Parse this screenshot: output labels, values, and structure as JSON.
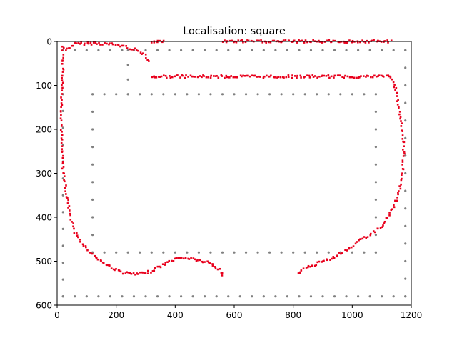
{
  "chart_data": {
    "type": "scatter",
    "title": "Localisation: square",
    "xlabel": "",
    "ylabel": "",
    "xlim": [
      0,
      1200
    ],
    "ylim": [
      600,
      0
    ],
    "y_inverted": true,
    "grid": false,
    "x_ticks": [
      0,
      200,
      400,
      600,
      800,
      1000,
      1200
    ],
    "y_ticks": [
      0,
      100,
      200,
      300,
      400,
      500,
      600
    ],
    "x_tick_labels": [
      "0",
      "200",
      "400",
      "600",
      "800",
      "1000",
      "1200"
    ],
    "y_tick_labels": [
      "0",
      "100",
      "200",
      "300",
      "400",
      "500",
      "600"
    ],
    "colors": {
      "landmarks": "#808080",
      "path": "#e8001c"
    },
    "series": [
      {
        "role": "landmarks",
        "marker": "circle",
        "polylines": [
          [
            [
              20,
              20
            ],
            [
              1180,
              20
            ]
          ],
          [
            [
              240,
              20
            ],
            [
              240,
              120
            ]
          ],
          [
            [
              20,
              120
            ],
            [
              20,
              580
            ]
          ],
          [
            [
              20,
              580
            ],
            [
              1180,
              580
            ]
          ],
          [
            [
              1180,
              20
            ],
            [
              1180,
              580
            ]
          ],
          [
            [
              120,
              120
            ],
            [
              1080,
              120
            ]
          ],
          [
            [
              120,
              120
            ],
            [
              120,
              480
            ]
          ],
          [
            [
              120,
              480
            ],
            [
              1080,
              480
            ]
          ],
          [
            [
              1080,
              120
            ],
            [
              1080,
              480
            ]
          ]
        ],
        "spacing": 40
      },
      {
        "role": "path",
        "marker": "square",
        "polylines": [
          [
            [
              30,
              20
            ],
            [
              60,
              6
            ],
            [
              130,
              4
            ],
            [
              180,
              6
            ],
            [
              220,
              10
            ],
            [
              270,
              20
            ],
            [
              300,
              30
            ],
            [
              310,
              45
            ]
          ],
          [
            [
              20,
              10
            ],
            [
              20,
              60
            ],
            [
              15,
              150
            ],
            [
              15,
              230
            ],
            [
              20,
              290
            ],
            [
              30,
              340
            ],
            [
              40,
              380
            ],
            [
              50,
              410
            ],
            [
              60,
              435
            ],
            [
              80,
              455
            ],
            [
              100,
              470
            ],
            [
              120,
              485
            ],
            [
              140,
              495
            ],
            [
              160,
              505
            ],
            [
              180,
              512
            ],
            [
              200,
              520
            ],
            [
              230,
              527
            ],
            [
              270,
              530
            ],
            [
              310,
              525
            ],
            [
              340,
              515
            ],
            [
              370,
              505
            ],
            [
              400,
              495
            ],
            [
              430,
              492
            ],
            [
              460,
              495
            ],
            [
              490,
              500
            ],
            [
              520,
              505
            ],
            [
              550,
              520
            ],
            [
              560,
              533
            ]
          ],
          [
            [
              320,
              80
            ],
            [
              1080,
              80
            ],
            [
              1120,
              78
            ],
            [
              1140,
              90
            ],
            [
              1150,
              120
            ],
            [
              1160,
              160
            ],
            [
              1170,
              200
            ],
            [
              1175,
              250
            ],
            [
              1170,
              300
            ],
            [
              1160,
              340
            ],
            [
              1140,
              375
            ],
            [
              1120,
              400
            ],
            [
              1100,
              420
            ],
            [
              1060,
              440
            ],
            [
              1020,
              455
            ],
            [
              980,
              475
            ],
            [
              940,
              490
            ],
            [
              900,
              500
            ],
            [
              860,
              512
            ],
            [
              830,
              520
            ],
            [
              815,
              530
            ]
          ],
          [
            [
              320,
              0
            ],
            [
              360,
              0
            ]
          ],
          [
            [
              560,
              0
            ],
            [
              1130,
              0
            ]
          ]
        ],
        "spacing": 6
      }
    ]
  }
}
